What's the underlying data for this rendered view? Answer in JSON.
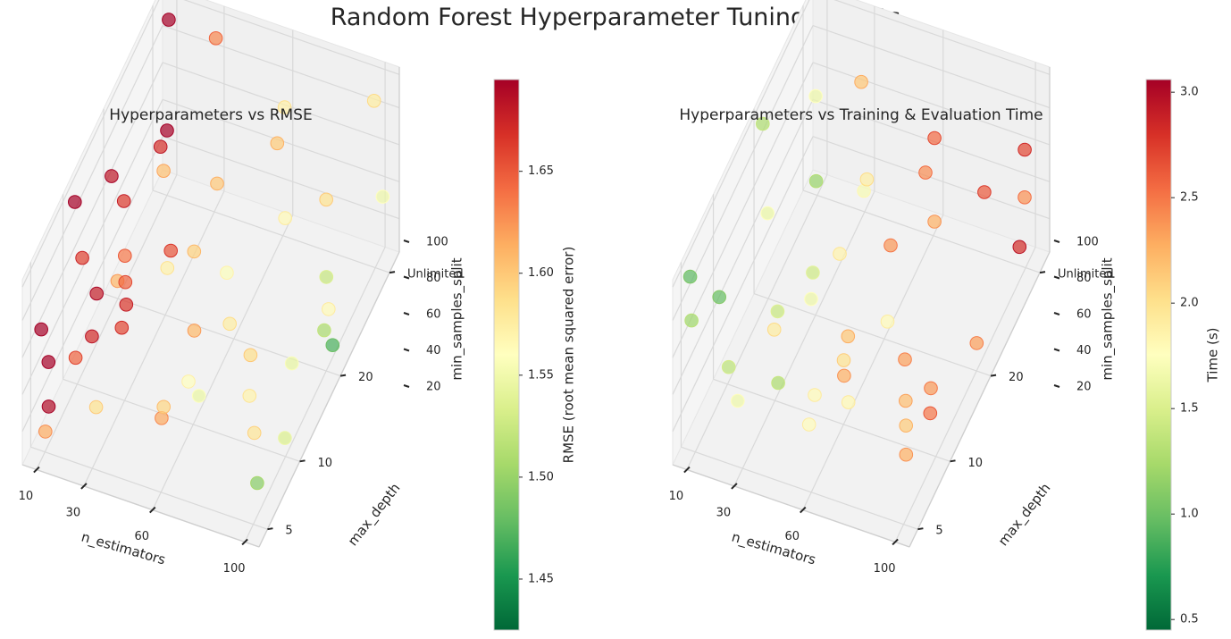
{
  "figure": {
    "title": "Random Forest Hyperparameter Tuning Results"
  },
  "chart_data": [
    {
      "type": "scatter",
      "projection": "3d",
      "title": "Hyperparameters vs RMSE",
      "xlabel": "n_estimators",
      "ylabel": "max_depth",
      "zlabel": "min_samples_split",
      "x_ticks": [
        "10",
        "30",
        "60",
        "100"
      ],
      "y_ticks": [
        "5",
        "10",
        "20",
        "Unlimited"
      ],
      "z_ticks": [
        "20",
        "40",
        "60",
        "80",
        "100"
      ],
      "x_values": [
        10,
        30,
        60,
        100
      ],
      "y_values": [
        "5",
        "10",
        "20",
        "Unlimited"
      ],
      "z_values": [
        2,
        5,
        10,
        20,
        50,
        100
      ],
      "colorbar": {
        "label": "RMSE (root mean squared error)",
        "colormap": "RdYlGn_r",
        "ticks": [
          "1.45",
          "1.50",
          "1.55",
          "1.60",
          "1.65"
        ],
        "range": [
          1.425,
          1.695
        ]
      },
      "color_value_range": [
        1.425,
        1.695
      ],
      "marker_alpha": 0.7,
      "grid": true
    },
    {
      "type": "scatter",
      "projection": "3d",
      "title": "Hyperparameters vs Training & Evaluation Time",
      "xlabel": "n_estimators",
      "ylabel": "max_depth",
      "zlabel": "min_samples_split",
      "x_ticks": [
        "10",
        "30",
        "60",
        "100"
      ],
      "y_ticks": [
        "5",
        "10",
        "20",
        "Unlimited"
      ],
      "z_ticks": [
        "20",
        "40",
        "60",
        "80",
        "100"
      ],
      "x_values": [
        10,
        30,
        60,
        100
      ],
      "y_values": [
        "5",
        "10",
        "20",
        "Unlimited"
      ],
      "z_values": [
        2,
        5,
        10,
        20,
        50,
        100
      ],
      "colorbar": {
        "label": "Time (s)",
        "colormap": "RdYlGn_r",
        "ticks": [
          "0.5",
          "1.0",
          "1.5",
          "2.0",
          "2.5",
          "3.0"
        ],
        "range": [
          0.45,
          3.06
        ]
      },
      "color_value_range": [
        0.45,
        3.06
      ],
      "marker_alpha": 0.7,
      "grid": true
    }
  ]
}
